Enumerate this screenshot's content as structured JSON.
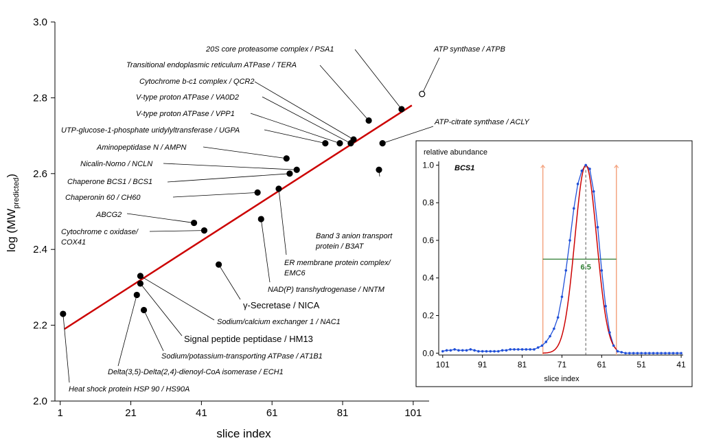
{
  "chart_data": [
    {
      "type": "scatter",
      "x_label": "slice index",
      "y_label": {
        "text": "log (MW",
        "sub": "predicted",
        "close": ")"
      },
      "xlim": [
        -0.5,
        105.5
      ],
      "ylim": [
        2,
        3
      ],
      "xticks": [
        1,
        21,
        41,
        61,
        81,
        101
      ],
      "yticks": [
        {
          "value": 2,
          "label": "2.0"
        },
        2.2,
        2.4,
        2.6,
        2.8,
        {
          "value": 3,
          "label": "3.0"
        }
      ],
      "x": [
        1.8,
        22.7,
        23.7,
        23.7,
        24.7,
        45.9,
        57.9,
        38.9,
        41.8,
        56.9,
        62.9,
        66.0,
        68.0,
        65.1,
        76.1,
        80.2,
        83.3,
        84.1,
        88.4,
        97.7,
        103.5,
        92.3,
        91.3
      ],
      "values": [
        2.23,
        2.28,
        2.31,
        2.33,
        2.24,
        2.36,
        2.48,
        2.47,
        2.45,
        2.55,
        2.56,
        2.6,
        2.61,
        2.64,
        2.68,
        2.68,
        2.68,
        2.69,
        2.74,
        2.77,
        2.81,
        2.68,
        2.61
      ],
      "marker_fill": [
        "#000",
        "#000",
        "#000",
        "#000",
        "#000",
        "#000",
        "#000",
        "#000",
        "#000",
        "#000",
        "#000",
        "#000",
        "#000",
        "#000",
        "#000",
        "#000",
        "#000",
        "#000",
        "#000",
        "#000",
        "#fff",
        "#000",
        "#000"
      ],
      "labels": [
        "Heat shock protein HSP 90 / HS90A",
        "Delta(3,5)-Delta(2,4)-dienoyl-CoA isomerase / ECH1",
        "Signal peptide peptidase / HM13",
        "Sodium/calcium exchanger 1 / NAC1",
        "Sodium/potassium-transporting ATPase / AT1B1",
        "γ-Secretase / NICA",
        "NAD(P) transhydrogenase / NNTM",
        "ABCG2",
        [
          "Cytochrome c oxidase/",
          "COX41"
        ],
        "Chaperonin 60 / CH60",
        [
          "ER membrane protein complex/",
          "EMC6"
        ],
        "Chaperone BCS1 / BCS1",
        "Nicalin-Nomo / NCLN",
        "Aminopeptidase N / AMPN",
        "UTP-glucose-1-phosphate uridylyltransferase / UGPA",
        "V-type proton ATPase / VPP1",
        "V-type proton ATPase / VA0D2",
        "Cytochrome b-c1 complex / QCR2",
        "Transitional endoplasmic reticulum ATPase / TERA",
        "20S core proteasome complex / PSA1",
        "ATP synthase / ATPB",
        "ATP-citrate synthase / ACLY",
        [
          "Band 3 anion transport",
          "protein / B3AT"
        ]
      ],
      "fit_line": {
        "x": [
          2.2,
          100.6
        ],
        "y": [
          2.19,
          2.78
        ],
        "color": "#cc0000"
      }
    },
    {
      "type": "profile",
      "title": "BCS1",
      "y_label": "relative abundance",
      "x_label": "slice index",
      "xlim": [
        102,
        40.5
      ],
      "ylim": [
        -0.01,
        1.02
      ],
      "xticks": [
        101,
        91,
        81,
        71,
        61,
        51,
        41
      ],
      "yticks": [
        {
          "value": 0,
          "label": "0.0"
        },
        0.2,
        0.4,
        0.6,
        0.8,
        {
          "value": 1,
          "label": "1.0"
        }
      ],
      "x": [
        101,
        100,
        99,
        98,
        97,
        96,
        95,
        94,
        93,
        92,
        91,
        90,
        89,
        88,
        87,
        86,
        85,
        84,
        83,
        82,
        81,
        80,
        79,
        78,
        77,
        76,
        75,
        74,
        73,
        72,
        71,
        70,
        69,
        68,
        67,
        66,
        65,
        64,
        63,
        62,
        61,
        60,
        59,
        58,
        57,
        56,
        55,
        54,
        53,
        52,
        51,
        50,
        49,
        48,
        47,
        46,
        45,
        44,
        43,
        42,
        41
      ],
      "values": [
        0.01,
        0.015,
        0.015,
        0.02,
        0.015,
        0.015,
        0.015,
        0.02,
        0.015,
        0.01,
        0.01,
        0.01,
        0.01,
        0.01,
        0.01,
        0.015,
        0.015,
        0.02,
        0.02,
        0.02,
        0.02,
        0.02,
        0.02,
        0.02,
        0.03,
        0.04,
        0.06,
        0.09,
        0.13,
        0.19,
        0.3,
        0.44,
        0.6,
        0.77,
        0.9,
        0.97,
        1.0,
        0.98,
        0.86,
        0.67,
        0.44,
        0.25,
        0.11,
        0.04,
        0.01,
        0.005,
        0,
        0,
        0,
        0,
        0,
        0,
        0,
        0,
        0,
        0,
        0,
        0,
        0,
        0,
        0
      ],
      "color": "#1f4fd8",
      "fit": {
        "center": 65,
        "fwhm": 6.5,
        "amplitude": 1.0,
        "color": "#cc0000"
      },
      "fwhm_label": "6.5",
      "window": [
        75.8,
        57.3
      ],
      "window_color": "#f4a582",
      "half_color": "#2e7d32"
    }
  ]
}
